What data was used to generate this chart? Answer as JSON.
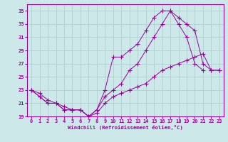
{
  "xlabel": "Windchill (Refroidissement éolien,°C)",
  "background_color": "#cce8e8",
  "grid_color": "#aacccc",
  "line_color": "#990099",
  "ylim": [
    19,
    36
  ],
  "yticks": [
    19,
    21,
    23,
    25,
    27,
    29,
    31,
    33,
    35
  ],
  "xlim": [
    -0.5,
    23.5
  ],
  "xticks": [
    0,
    1,
    2,
    3,
    4,
    5,
    6,
    7,
    8,
    9,
    10,
    11,
    12,
    13,
    14,
    15,
    16,
    17,
    18,
    19,
    20,
    21,
    22,
    23
  ],
  "series1_x": [
    0,
    1,
    2,
    3,
    4,
    5,
    6,
    7,
    8,
    9,
    10,
    11,
    12,
    13,
    14,
    15,
    16,
    17,
    18,
    19,
    20,
    21
  ],
  "series1_y": [
    23,
    22,
    21,
    21,
    20,
    20,
    20,
    19,
    20,
    23,
    28,
    28,
    29,
    30,
    32,
    34,
    35,
    35,
    33,
    31,
    27,
    26
  ],
  "series2_x": [
    0,
    1,
    2,
    3,
    4,
    5,
    6,
    7,
    8,
    9,
    10,
    11,
    12,
    13,
    14,
    15,
    16,
    17,
    18,
    19,
    20,
    21,
    22,
    23
  ],
  "series2_y": [
    23,
    22,
    21,
    21,
    20,
    20,
    20,
    19,
    20,
    22,
    23,
    24,
    26,
    27,
    29,
    31,
    33,
    35,
    34,
    33,
    32,
    27,
    26,
    26
  ],
  "series3_x": [
    0,
    1,
    2,
    3,
    4,
    5,
    6,
    7,
    8,
    9,
    10,
    11,
    12,
    13,
    14,
    15,
    16,
    17,
    18,
    19,
    20,
    21,
    22,
    23
  ],
  "series3_y": [
    23,
    22.5,
    21.5,
    21,
    20.5,
    20,
    20,
    19,
    19.5,
    21,
    22,
    22.5,
    23,
    23.5,
    24,
    25,
    26,
    26.5,
    27,
    27.5,
    28,
    28.5,
    26,
    26
  ]
}
